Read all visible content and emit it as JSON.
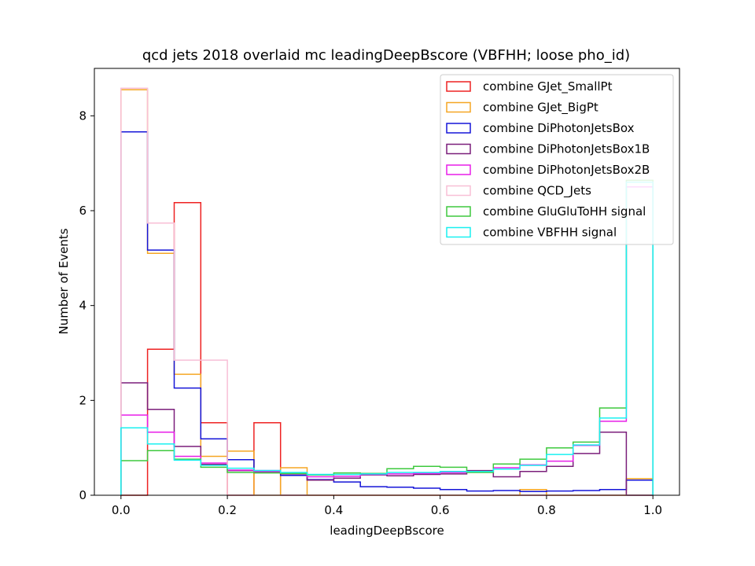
{
  "chart_data": {
    "type": "histogram-step",
    "title": "qcd jets 2018 overlaid mc leadingDeepBscore (VBFHH; loose pho_id)",
    "xlabel": "leadingDeepBscore",
    "ylabel": "Number of Events",
    "xlim": [
      -0.05,
      1.05
    ],
    "ylim": [
      0,
      9
    ],
    "xticks": [
      0.0,
      0.2,
      0.4,
      0.6,
      0.8,
      1.0
    ],
    "xtick_labels": [
      "0.0",
      "0.2",
      "0.4",
      "0.6",
      "0.8",
      "1.0"
    ],
    "yticks": [
      0,
      2,
      4,
      6,
      8
    ],
    "ytick_labels": [
      "0",
      "2",
      "4",
      "6",
      "8"
    ],
    "legend_position": "top-right",
    "grid": false,
    "bin_edges": [
      0.0,
      0.05,
      0.1,
      0.15,
      0.2,
      0.25,
      0.3,
      0.35,
      0.4,
      0.45,
      0.5,
      0.55,
      0.6,
      0.65,
      0.7,
      0.75,
      0.8,
      0.85,
      0.9,
      0.95,
      1.0
    ],
    "series": [
      {
        "name": "combine GJet_SmallPt",
        "color": "#ee2222",
        "values": [
          0,
          3.08,
          6.17,
          1.53,
          0,
          1.53,
          0,
          0,
          0,
          0,
          0,
          0,
          0,
          0,
          0,
          0,
          0,
          0,
          0,
          0
        ]
      },
      {
        "name": "combine GJet_BigPt",
        "color": "#f5a623",
        "values": [
          8.55,
          5.1,
          2.55,
          0.82,
          0.93,
          0,
          0.58,
          0,
          0,
          0,
          0,
          0,
          0,
          0,
          0,
          0.12,
          0,
          0,
          0,
          0.35
        ]
      },
      {
        "name": "combine DiPhotonJetsBox",
        "color": "#1515d8",
        "values": [
          7.66,
          5.17,
          2.26,
          1.19,
          0.75,
          0.52,
          0.42,
          0.33,
          0.28,
          0.18,
          0.17,
          0.15,
          0.12,
          0.09,
          0.1,
          0.08,
          0.09,
          0.1,
          0.12,
          0.32
        ]
      },
      {
        "name": "combine DiPhotonJetsBox1B",
        "color": "#7b1f7b",
        "values": [
          2.37,
          1.81,
          1.03,
          0.65,
          0.52,
          0.49,
          0.45,
          0.32,
          0.36,
          0.43,
          0.41,
          0.44,
          0.45,
          0.52,
          0.39,
          0.5,
          0.61,
          0.88,
          1.33,
          0
        ]
      },
      {
        "name": "combine DiPhotonJetsBox2B",
        "color": "#e81ee8",
        "values": [
          1.69,
          1.33,
          0.82,
          0.68,
          0.53,
          0.5,
          0.47,
          0.39,
          0.4,
          0.44,
          0.45,
          0.46,
          0.48,
          0.5,
          0.58,
          0.64,
          0.72,
          1.05,
          1.56,
          6.5
        ]
      },
      {
        "name": "combine QCD_Jets",
        "color": "#f8bfd6",
        "values": [
          8.58,
          5.74,
          2.85,
          2.85,
          0,
          0,
          0,
          0,
          0,
          0,
          0,
          0,
          0,
          0,
          0,
          0,
          0,
          0,
          0,
          0
        ]
      },
      {
        "name": "combine GluGluToHH signal",
        "color": "#3ec93e",
        "values": [
          0.73,
          0.94,
          0.76,
          0.59,
          0.48,
          0.47,
          0.46,
          0.43,
          0.47,
          0.46,
          0.56,
          0.61,
          0.59,
          0.48,
          0.66,
          0.76,
          1.0,
          1.12,
          1.84,
          6.64
        ]
      },
      {
        "name": "combine VBFHH signal",
        "color": "#19f0f0",
        "values": [
          1.42,
          1.08,
          0.74,
          0.63,
          0.57,
          0.52,
          0.48,
          0.44,
          0.44,
          0.45,
          0.48,
          0.48,
          0.5,
          0.5,
          0.55,
          0.63,
          0.86,
          1.06,
          1.63,
          6.6
        ]
      }
    ]
  }
}
